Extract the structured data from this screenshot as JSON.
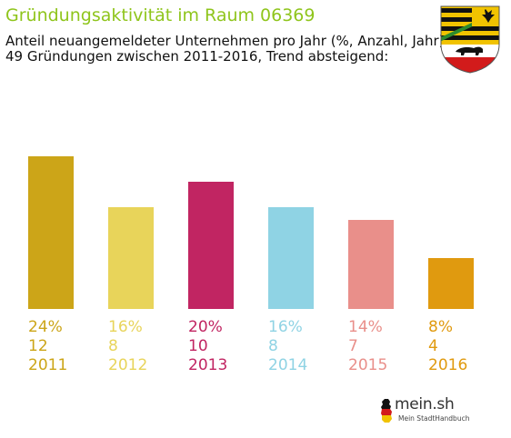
{
  "header": {
    "title": "Gründungsaktivität im Raum 06369",
    "subtitle_line1": "Anteil neuangemeldeter Unternehmen pro Jahr (%, Anzahl, Jahr)",
    "subtitle_line2": "49 Gründungen zwischen 2011-2016, Trend absteigend:"
  },
  "brand": {
    "name": "mein.sh",
    "tagline": "Mein StadtHandbuch",
    "title_color": "#8fc51c"
  },
  "chart_data": {
    "type": "bar",
    "categories": [
      "2011",
      "2012",
      "2013",
      "2014",
      "2015",
      "2016"
    ],
    "values": [
      24,
      16,
      20,
      16,
      14,
      8
    ],
    "counts": [
      12,
      8,
      10,
      8,
      7,
      4
    ],
    "percent_labels": [
      "24%",
      "16%",
      "20%",
      "16%",
      "14%",
      "8%"
    ],
    "count_labels": [
      "12",
      "8",
      "10",
      "8",
      "7",
      "4"
    ],
    "colors": [
      "#cca518",
      "#e8d45a",
      "#c12562",
      "#8fd3e4",
      "#e98f8a",
      "#e09a0f"
    ],
    "title": "Gründungsaktivität im Raum 06369",
    "xlabel": "",
    "ylabel": "",
    "ylim": [
      0,
      28
    ],
    "grid": false,
    "legend": "none"
  }
}
